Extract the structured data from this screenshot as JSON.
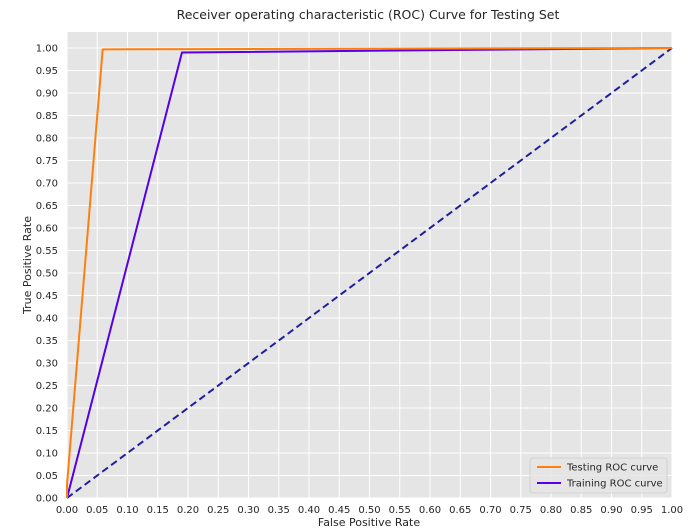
{
  "chart_data": {
    "type": "line",
    "title": "Receiver operating characteristic (ROC) Curve for Testing Set",
    "xlabel": "False Positive Rate",
    "ylabel": "True Positive Rate",
    "xlim": [
      0,
      1
    ],
    "ylim": [
      0,
      1
    ],
    "xticks": [
      "0.00",
      "0.05",
      "0.10",
      "0.15",
      "0.20",
      "0.25",
      "0.30",
      "0.35",
      "0.40",
      "0.45",
      "0.50",
      "0.55",
      "0.60",
      "0.65",
      "0.70",
      "0.75",
      "0.80",
      "0.85",
      "0.90",
      "0.95",
      "1.00"
    ],
    "yticks": [
      "0.00",
      "0.05",
      "0.10",
      "0.15",
      "0.20",
      "0.25",
      "0.30",
      "0.35",
      "0.40",
      "0.45",
      "0.50",
      "0.55",
      "0.60",
      "0.65",
      "0.70",
      "0.75",
      "0.80",
      "0.85",
      "0.90",
      "0.95",
      "1.00"
    ],
    "grid": true,
    "legend_position": "bottom-right",
    "series": [
      {
        "name": "Testing ROC curve",
        "color": "#ff7f0e",
        "dash": "solid",
        "legend": true,
        "x": [
          0.0,
          0.0,
          0.059,
          1.0
        ],
        "y": [
          0.0,
          0.03,
          0.997,
          1.0
        ]
      },
      {
        "name": "Training ROC curve",
        "color": "#5500e8",
        "dash": "solid",
        "legend": true,
        "x": [
          0.0,
          0.19,
          1.0
        ],
        "y": [
          0.0,
          0.99,
          1.0
        ]
      },
      {
        "name": "",
        "color": "#1f1f9e",
        "dash": "dashed",
        "legend": false,
        "x": [
          0.0,
          1.0
        ],
        "y": [
          0.0,
          1.0
        ]
      }
    ]
  }
}
